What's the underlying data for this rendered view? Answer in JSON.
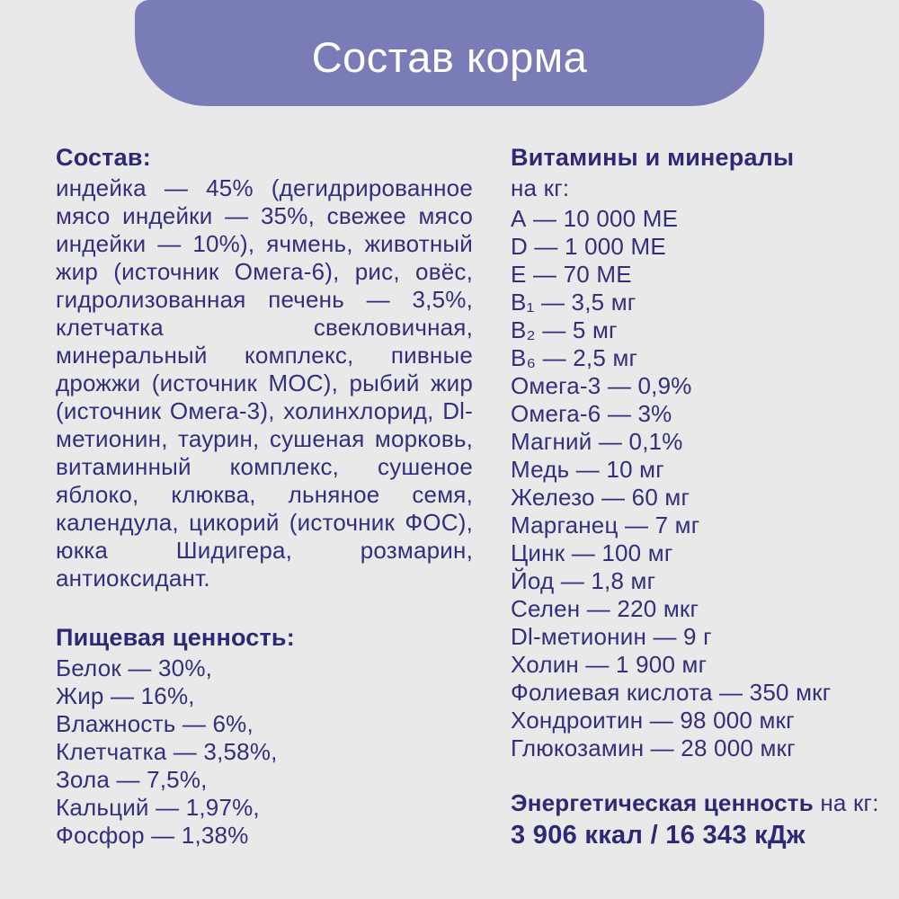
{
  "colors": {
    "background": "#e9e9ea",
    "header_background": "#7a7cb8",
    "header_text": "#ffffff",
    "body_text": "#332f7d",
    "heading_text": "#2e2976"
  },
  "header": {
    "title": "Состав корма"
  },
  "composition": {
    "heading": "Состав:",
    "text": "индейка — 45% (дегидрированное мясо индейки — 35%, свежее мясо индейки — 10%), ячмень, животный жир (источник Омега-6), рис, овёс, гидролизованная печень — 3,5%, клетчатка свекловичная, минеральный комплекс, пивные дрожжи (источник МОС), рыбий жир (источник Омега-3), холинхлорид, Dl-метионин, таурин, сушеная морковь, витаминный комплекс, сушеное яблоко, клюква, льняное семя, календула, цикорий (источник ФОС), юкка Шидигера, розмарин, антиоксидант."
  },
  "nutrition": {
    "heading": "Пищевая ценность:",
    "items": [
      "Белок — 30%,",
      "Жир — 16%,",
      "Влажность — 6%,",
      "Клетчатка — 3,58%,",
      "Зола — 7,5%,",
      "Кальций — 1,97%,",
      "Фосфор — 1,38%"
    ]
  },
  "vitamins": {
    "heading": "Витамины и минералы",
    "subheading": "на кг:",
    "items": [
      "А — 10 000 МЕ",
      "D — 1 000 МЕ",
      "Е — 70 МЕ",
      "В₁ — 3,5 мг",
      "В₂ — 5 мг",
      "В₆ — 2,5 мг",
      "Омега-3 — 0,9%",
      "Омега-6 — 3%",
      "Магний — 0,1%",
      "Медь — 10 мг",
      "Железо — 60 мг",
      "Марганец — 7 мг",
      "Цинк — 100 мг",
      "Йод — 1,8 мг",
      "Селен — 220 мкг",
      "Dl-метионин — 9 г",
      "Холин — 1 900 мг",
      "Фолиевая кислота — 350 мкг",
      "Хондроитин — 98 000 мкг",
      "Глюкозамин — 28 000 мкг"
    ]
  },
  "energy": {
    "heading": "Энергетическая ценность",
    "per": " на кг:",
    "value": "3 906 ккал / 16 343 кДж"
  }
}
